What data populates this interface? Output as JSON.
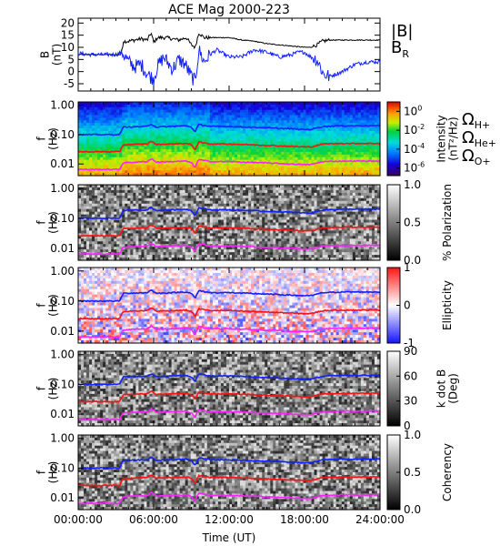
{
  "figure": {
    "title": "ACE Mag 2000-223",
    "xlabel": "Time (UT)",
    "xtick_labels": [
      "00:00:00",
      "06:00:00",
      "12:00:00",
      "18:00:00",
      "24:00:00"
    ]
  },
  "colors": {
    "total_field": "#000000",
    "radial_field": "#1020ff",
    "omega_h": "#1020ff",
    "omega_he": "#ff1010",
    "omega_o": "#ff20ff"
  },
  "legends": {
    "mag": [
      "|B|",
      "B_R"
    ],
    "ions": [
      "Ω_H+",
      "Ω_He+",
      "Ω_O+"
    ]
  },
  "chart_data": [
    {
      "type": "line",
      "title": "ACE Mag 2000-223",
      "ylabel": "B (nT)",
      "ylabel_lines": [
        "B",
        "(nT)"
      ],
      "ylim": [
        -8,
        22
      ],
      "ytick_labels": [
        "20",
        "15",
        "10",
        "5",
        "0",
        "-5"
      ],
      "ytick_values": [
        20,
        15,
        10,
        5,
        0,
        -5
      ],
      "x_unit": "hours UT",
      "xlim": [
        0,
        24
      ],
      "series": [
        {
          "name": "|B|",
          "color": "#000000",
          "x": [
            0,
            1,
            2,
            3,
            3.4,
            3.6,
            4,
            5,
            5.5,
            5.8,
            6,
            6.3,
            7,
            8,
            8.6,
            9,
            9.3,
            9.6,
            10,
            11,
            12,
            13,
            14,
            15,
            16,
            17,
            18,
            18.5,
            19,
            19.4,
            20,
            22,
            24
          ],
          "y": [
            7,
            7,
            7,
            7,
            7,
            12.5,
            12.5,
            13.5,
            13,
            16,
            12,
            14,
            14,
            13,
            14,
            11,
            10,
            16,
            14,
            14,
            14,
            13,
            12.5,
            11.5,
            11,
            10.5,
            10,
            10,
            11,
            12.5,
            13,
            13,
            13
          ]
        },
        {
          "name": "B_R",
          "color": "#1020ff",
          "x": [
            0,
            1,
            2,
            3,
            3.5,
            4,
            4.5,
            5,
            5.5,
            6,
            6.3,
            6.8,
            7.5,
            8,
            8.5,
            9,
            9.3,
            9.6,
            10,
            10.5,
            11,
            12,
            13,
            14,
            15,
            16,
            17,
            17.5,
            18,
            18.5,
            19,
            19.5,
            20,
            21,
            22,
            23,
            24
          ],
          "y": [
            7.5,
            7,
            7,
            7,
            8,
            4,
            2,
            3,
            -1,
            -3,
            2,
            6,
            1,
            5,
            3,
            -2,
            -4,
            9,
            4,
            7,
            9,
            6,
            6,
            9,
            8,
            6,
            7,
            8,
            8,
            6,
            5,
            -1,
            -2,
            0,
            3,
            4,
            4
          ]
        }
      ]
    },
    {
      "type": "heatmap",
      "ylabel": "f (Hz)",
      "ylabel_lines": [
        "f",
        "(Hz)"
      ],
      "ytick_labels": [
        "1.00",
        "0.10",
        "0.01"
      ],
      "ytick_values": [
        1.0,
        0.1,
        0.01
      ],
      "ylim": [
        0.004,
        1.3
      ],
      "colorbar": {
        "label": "Intensity (nT²/Hz)",
        "label_lines": [
          "Intensity",
          "(nT²/Hz)"
        ],
        "scale": "log",
        "tick_labels": [
          "10^0",
          "10^-2",
          "10^-4",
          "10^-6"
        ],
        "range": [
          -6.8,
          1
        ],
        "colormap": "rainbow"
      },
      "description_lines": [
        "Ω_H+",
        "Ω_He+",
        "Ω_O+"
      ]
    },
    {
      "type": "heatmap",
      "ylabel": "f (Hz)",
      "ylabel_lines": [
        "f",
        "(Hz)"
      ],
      "ytick_labels": [
        "1.00",
        "0.10",
        "0.01"
      ],
      "ytick_values": [
        1.0,
        0.1,
        0.01
      ],
      "ylim": [
        0.004,
        1.3
      ],
      "colorbar": {
        "label": "% Polarization",
        "tick_labels": [
          "1.0",
          "0.5",
          "0.0"
        ],
        "range": [
          0,
          1
        ],
        "colormap": "gray"
      }
    },
    {
      "type": "heatmap",
      "ylabel": "f (Hz)",
      "ylabel_lines": [
        "f",
        "(Hz)"
      ],
      "ytick_labels": [
        "1.00",
        "0.10",
        "0.01"
      ],
      "ytick_values": [
        1.0,
        0.1,
        0.01
      ],
      "ylim": [
        0.004,
        1.3
      ],
      "colorbar": {
        "label": "Ellipticity",
        "tick_labels": [
          "1",
          "0",
          "-1"
        ],
        "range": [
          -1,
          1
        ],
        "colormap": "bwr"
      }
    },
    {
      "type": "heatmap",
      "ylabel": "f (Hz)",
      "ylabel_lines": [
        "f",
        "(Hz)"
      ],
      "ytick_labels": [
        "1.00",
        "0.10",
        "0.01"
      ],
      "ytick_values": [
        1.0,
        0.1,
        0.01
      ],
      "ylim": [
        0.004,
        1.3
      ],
      "colorbar": {
        "label": "k dot B (Deg)",
        "label_lines": [
          "k dot B",
          "(Deg)"
        ],
        "tick_labels": [
          "90",
          "60",
          "30",
          "0"
        ],
        "range": [
          0,
          90
        ],
        "colormap": "gray"
      }
    },
    {
      "type": "heatmap",
      "ylabel": "f (Hz)",
      "ylabel_lines": [
        "f",
        "(Hz)"
      ],
      "ytick_labels": [
        "1.00",
        "0.10",
        "0.01"
      ],
      "ytick_values": [
        1.0,
        0.1,
        0.01
      ],
      "ylim": [
        0.004,
        1.3
      ],
      "colorbar": {
        "label": "Coherency",
        "tick_labels": [
          "1.0",
          "0.5",
          "0.0"
        ],
        "range": [
          0,
          1
        ],
        "colormap": "gray"
      }
    }
  ],
  "gyrofrequency_lines": {
    "x": [
      0,
      3.3,
      3.6,
      5.5,
      5.8,
      6.2,
      8.6,
      9,
      9.3,
      9.6,
      10.5,
      12,
      15,
      18,
      18.5,
      19.5,
      21,
      24
    ],
    "H+": [
      0.1,
      0.1,
      0.18,
      0.19,
      0.23,
      0.18,
      0.2,
      0.18,
      0.12,
      0.22,
      0.19,
      0.19,
      0.17,
      0.15,
      0.15,
      0.19,
      0.2,
      0.2
    ],
    "He+": [
      0.026,
      0.026,
      0.045,
      0.048,
      0.06,
      0.046,
      0.05,
      0.045,
      0.03,
      0.055,
      0.048,
      0.048,
      0.043,
      0.038,
      0.038,
      0.048,
      0.05,
      0.05
    ],
    "O+": [
      0.0065,
      0.0065,
      0.011,
      0.012,
      0.015,
      0.0115,
      0.0125,
      0.011,
      0.0075,
      0.014,
      0.012,
      0.012,
      0.0108,
      0.0095,
      0.0095,
      0.012,
      0.0125,
      0.0125
    ]
  }
}
